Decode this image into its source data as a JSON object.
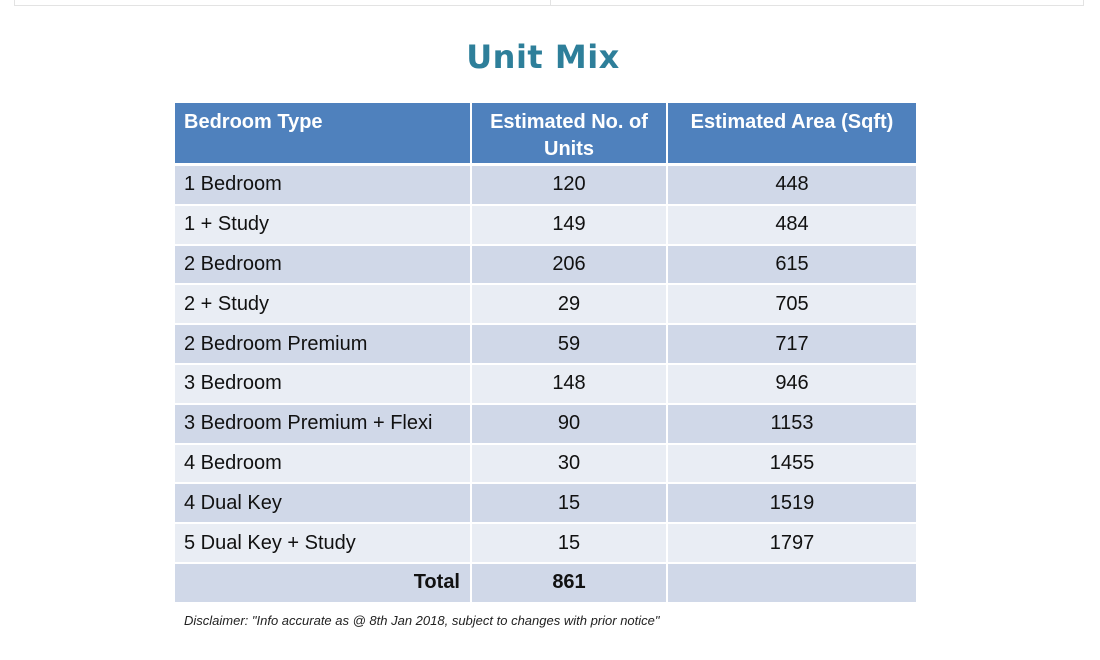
{
  "title": "Unit Mix",
  "table": {
    "headers": {
      "type": "Bedroom Type",
      "units": "Estimated No. of Units",
      "area": "Estimated Area (Sqft)"
    },
    "rows": [
      {
        "type": "1 Bedroom",
        "units": "120",
        "area": "448"
      },
      {
        "type": "1 + Study",
        "units": "149",
        "area": "484"
      },
      {
        "type": "2 Bedroom",
        "units": "206",
        "area": "615"
      },
      {
        "type": "2 + Study",
        "units": "29",
        "area": "705"
      },
      {
        "type": "2 Bedroom Premium",
        "units": "59",
        "area": "717"
      },
      {
        "type": "3 Bedroom",
        "units": "148",
        "area": "946"
      },
      {
        "type": "3 Bedroom Premium + Flexi",
        "units": "90",
        "area": "1153"
      },
      {
        "type": "4 Bedroom",
        "units": "30",
        "area": "1455"
      },
      {
        "type": "4 Dual Key",
        "units": "15",
        "area": "1519"
      },
      {
        "type": "5 Dual Key + Study",
        "units": "15",
        "area": "1797"
      }
    ],
    "total": {
      "label": "Total",
      "units": "861",
      "area": ""
    }
  },
  "disclaimer": "Disclaimer: \"Info accurate as @ 8th Jan 2018, subject to changes with prior notice\"",
  "colors": {
    "title": "#2e7f9a",
    "header_bg": "#4f81bd",
    "row_dark": "#d0d8e8",
    "row_light": "#e9edf4"
  }
}
